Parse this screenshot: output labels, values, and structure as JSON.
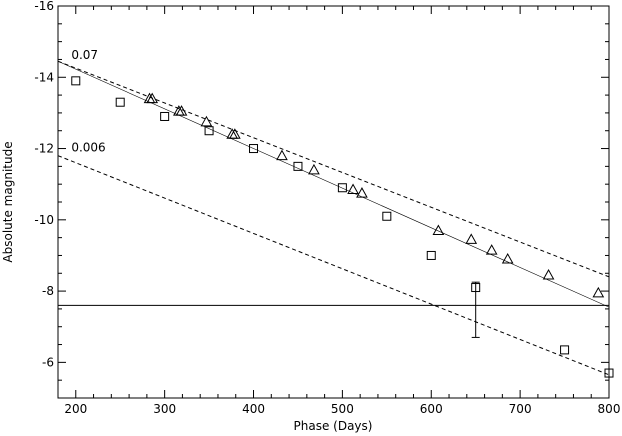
{
  "chart_data": {
    "type": "scatter",
    "title": "",
    "xlabel": "Phase (Days)",
    "ylabel": "Absolute magnitude",
    "xlim": [
      180,
      800
    ],
    "ylim": [
      -16,
      -5
    ],
    "y_inverted": true,
    "x_ticks": [
      200,
      300,
      400,
      500,
      600,
      700,
      800
    ],
    "x_tick_labels": [
      "200",
      "300",
      "400",
      "500",
      "600",
      "700",
      "800"
    ],
    "y_ticks": [
      -16,
      -14,
      -12,
      -10,
      -8,
      -6
    ],
    "y_tick_labels": [
      "-16",
      "-14",
      "-12",
      "-10",
      "-8",
      "-6"
    ],
    "grid": false,
    "series": [
      {
        "marker": "square",
        "points": [
          {
            "x": 200,
            "y": -13.9
          },
          {
            "x": 250,
            "y": -13.3
          },
          {
            "x": 300,
            "y": -12.9
          },
          {
            "x": 350,
            "y": -12.5
          },
          {
            "x": 400,
            "y": -12.0
          },
          {
            "x": 450,
            "y": -11.5
          },
          {
            "x": 500,
            "y": -10.9
          },
          {
            "x": 550,
            "y": -10.1
          },
          {
            "x": 600,
            "y": -9.0
          },
          {
            "x": 650,
            "y": -8.1,
            "err_low": 1.4,
            "err_high": 0.15
          },
          {
            "x": 750,
            "y": -6.35
          },
          {
            "x": 800,
            "y": -5.7
          }
        ]
      },
      {
        "marker": "triangle",
        "points": [
          {
            "x": 283,
            "y": -13.4
          },
          {
            "x": 286,
            "y": -13.4
          },
          {
            "x": 316,
            "y": -13.05
          },
          {
            "x": 319,
            "y": -13.05
          },
          {
            "x": 347,
            "y": -12.75
          },
          {
            "x": 376,
            "y": -12.4
          },
          {
            "x": 379,
            "y": -12.4
          },
          {
            "x": 432,
            "y": -11.8
          },
          {
            "x": 468,
            "y": -11.4
          },
          {
            "x": 512,
            "y": -10.85
          },
          {
            "x": 522,
            "y": -10.75
          },
          {
            "x": 608,
            "y": -9.7
          },
          {
            "x": 645,
            "y": -9.45
          },
          {
            "x": 668,
            "y": -9.15
          },
          {
            "x": 686,
            "y": -8.9
          },
          {
            "x": 732,
            "y": -8.45
          },
          {
            "x": 788,
            "y": -7.95
          }
        ]
      }
    ],
    "lines": [
      {
        "label": "0.07",
        "style": "dashed",
        "x": [
          180,
          800
        ],
        "y": [
          -14.45,
          -8.4
        ],
        "label_at": {
          "x": 195,
          "y": -14.35
        }
      },
      {
        "label": "",
        "style": "solid-thin",
        "x": [
          180,
          800
        ],
        "y": [
          -14.45,
          -7.55
        ]
      },
      {
        "label": "0.006",
        "style": "dashed",
        "x": [
          180,
          800
        ],
        "y": [
          -11.8,
          -5.65
        ],
        "label_at": {
          "x": 195,
          "y": -11.75
        }
      },
      {
        "label": "",
        "style": "solid",
        "x": [
          180,
          800
        ],
        "y": [
          -7.6,
          -7.6
        ]
      }
    ]
  }
}
